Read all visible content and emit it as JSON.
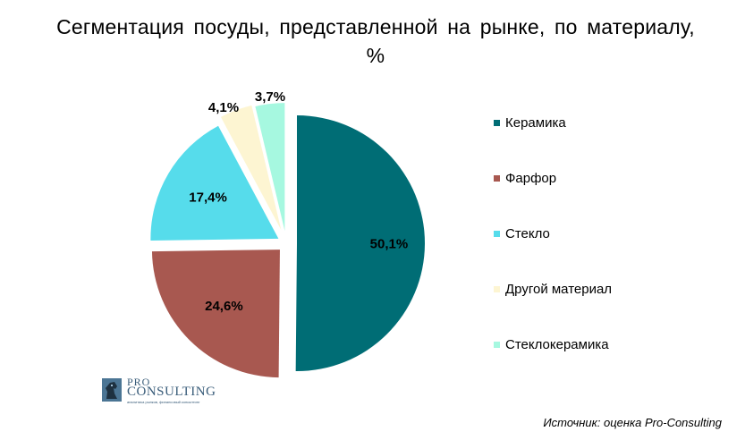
{
  "chart_data": {
    "type": "pie",
    "title": "Сегментация посуды, представленной на рынке, по материалу, %",
    "categories": [
      "Керамика",
      "Фарфор",
      "Стекло",
      "Другой материал",
      "Стеклокерамика"
    ],
    "values": [
      50.1,
      24.6,
      17.4,
      4.1,
      3.7
    ],
    "data_labels": [
      "50,1%",
      "24,6%",
      "17,4%",
      "4,1%",
      "3,7%"
    ],
    "colors": [
      "#006d75",
      "#a85850",
      "#56dceb",
      "#fdf5d2",
      "#a6f8e0"
    ],
    "legend_position": "right",
    "exploded": true
  },
  "logo": {
    "line1": "PRO",
    "line2": "CONSULTING",
    "line3": "аналитика рынков, финансовый консалтинг"
  },
  "source": "Источник: оценка Pro-Consulting"
}
